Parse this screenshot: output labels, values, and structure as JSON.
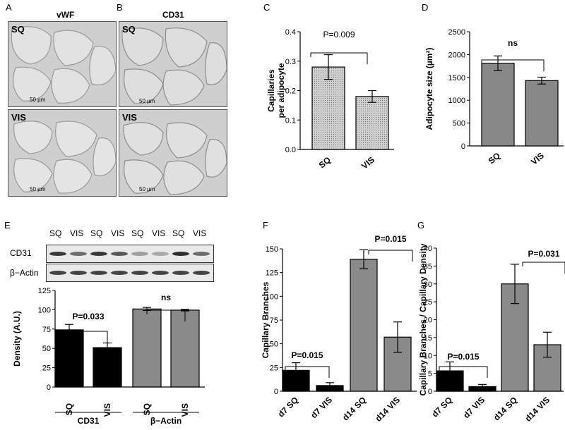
{
  "panels": {
    "A": "A",
    "B": "B",
    "C": "C",
    "D": "D",
    "E": "E",
    "F": "F",
    "G": "G"
  },
  "micrographs": {
    "A_title": "vWF",
    "B_title": "CD31",
    "sq_label": "SQ",
    "vis_label": "VIS",
    "scale_bar": "50 µm"
  },
  "blot": {
    "lanes": [
      "SQ",
      "VIS",
      "SQ",
      "VIS",
      "SQ",
      "VIS",
      "SQ",
      "VIS"
    ],
    "row1": "CD31",
    "row2": "β−Actin"
  },
  "chart_data": [
    {
      "panel": "C",
      "type": "bar",
      "categories": [
        "SQ",
        "VIS"
      ],
      "values": [
        0.28,
        0.18
      ],
      "errors": [
        0.042,
        0.02
      ],
      "ylabel": "Capillaries\nper adipocyte",
      "ylim": [
        0,
        0.4
      ],
      "yticks": [
        "0.0",
        "0.1",
        "0.2",
        "0.3",
        "0.4"
      ],
      "annotation": "P=0.009",
      "fill": "#c8c8c8"
    },
    {
      "panel": "D",
      "type": "bar",
      "categories": [
        "SQ",
        "VIS"
      ],
      "values": [
        1810,
        1430
      ],
      "errors": [
        160,
        75
      ],
      "ylabel": "Adipocyte size (µm²)",
      "ylim": [
        0,
        2500
      ],
      "yticks": [
        "0",
        "500",
        "1000",
        "1500",
        "2000",
        "2500"
      ],
      "annotation": "ns",
      "fill": "#888888"
    },
    {
      "panel": "E",
      "type": "bar",
      "categories": [
        "SQ",
        "VIS",
        "SQ",
        "VIS"
      ],
      "groups": [
        "CD31",
        "β−Actin"
      ],
      "values": [
        74,
        51,
        101,
        99.5
      ],
      "errors": [
        7,
        6,
        2,
        1
      ],
      "ylabel": "Density (A.U.)",
      "ylim": [
        0,
        125
      ],
      "yticks": [
        "0",
        "25",
        "50",
        "75",
        "100",
        "125"
      ],
      "annotations": [
        "P=0.033",
        "ns"
      ],
      "colors": [
        "#000000",
        "#000000",
        "#8a8a8a",
        "#8a8a8a"
      ]
    },
    {
      "panel": "F",
      "type": "bar",
      "categories": [
        "d7 SQ",
        "d7 VIS",
        "d14 SQ",
        "d14 VIS"
      ],
      "values": [
        22,
        6,
        139,
        57
      ],
      "errors": [
        8,
        3,
        10,
        16
      ],
      "ylabel": "Capillary Branches",
      "ylim": [
        0,
        150
      ],
      "yticks": [
        "0",
        "25",
        "50",
        "75",
        "100",
        "125",
        "150"
      ],
      "annotations": [
        "P=0.015",
        "P=0.015"
      ],
      "colors": [
        "#000000",
        "#000000",
        "#8a8a8a",
        "#8a8a8a"
      ]
    },
    {
      "panel": "G",
      "type": "bar",
      "categories": [
        "d7 SQ",
        "d7 VIS",
        "d14 SQ",
        "d14 VIS"
      ],
      "values": [
        5.7,
        1.3,
        30,
        13
      ],
      "errors": [
        2.5,
        0.6,
        5.5,
        3.5
      ],
      "ylabel": "Capillary Branches / Capillary Density",
      "ylim": [
        0,
        40
      ],
      "yticks": [
        "0",
        "5",
        "10",
        "15",
        "20",
        "25",
        "30",
        "35",
        "40"
      ],
      "annotations": [
        "P=0.015",
        "P=0.031"
      ],
      "colors": [
        "#000000",
        "#000000",
        "#8a8a8a",
        "#8a8a8a"
      ]
    }
  ]
}
